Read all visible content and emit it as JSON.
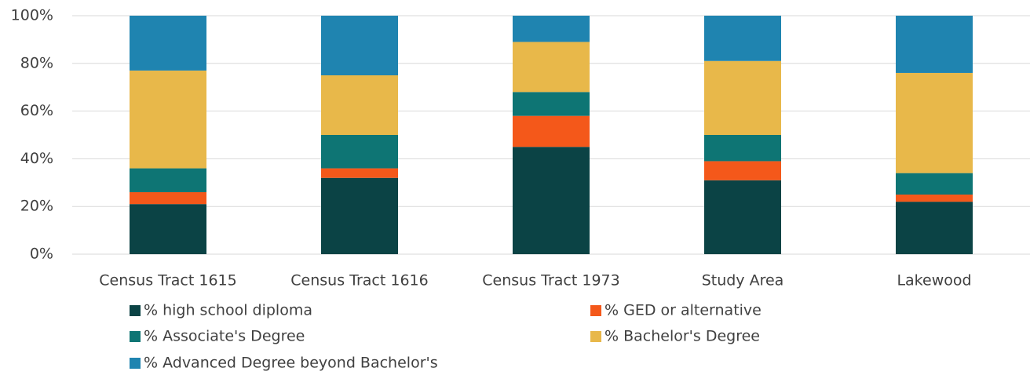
{
  "chart_data": {
    "type": "stacked_bar",
    "categories": [
      "Census Tract 1615",
      "Census Tract 1616",
      "Census Tract 1973",
      "Study Area",
      "Lakewood"
    ],
    "series": [
      {
        "name": "% high school diploma",
        "color": "#0b4345",
        "values": [
          21,
          32,
          45,
          31,
          22
        ]
      },
      {
        "name": "% GED or alternative",
        "color": "#f4581a",
        "values": [
          5,
          4,
          13,
          8,
          3
        ]
      },
      {
        "name": "% Associate's Degree",
        "color": "#0e7574",
        "values": [
          10,
          14,
          10,
          11,
          9
        ]
      },
      {
        "name": "% Bachelor's Degree",
        "color": "#e8b84a",
        "values": [
          41,
          25,
          21,
          31,
          42
        ]
      },
      {
        "name": "% Advanced Degree beyond Bachelor's",
        "color": "#1f84b0",
        "values": [
          23,
          25,
          11,
          19,
          24
        ]
      }
    ],
    "ylim": [
      0,
      100
    ],
    "yticks": [
      {
        "value": 0,
        "label": "0%"
      },
      {
        "value": 20,
        "label": "20%"
      },
      {
        "value": 40,
        "label": "40%"
      },
      {
        "value": 60,
        "label": "60%"
      },
      {
        "value": 80,
        "label": "80%"
      },
      {
        "value": 100,
        "label": "100%"
      }
    ],
    "grid": true,
    "legend": "bottom"
  }
}
